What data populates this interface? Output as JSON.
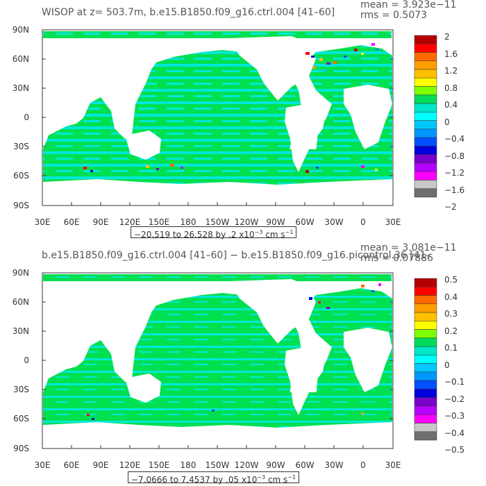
{
  "panels": [
    {
      "title": "WISOP at z= 503.7m, b.e15.B1850.f09_g16.ctrl.004 [41–60]",
      "stat_mean": "mean = 3.923e−11",
      "stat_rms": "rms = 0.5073",
      "colorbar_labels": [
        "2",
        "1.6",
        "1.2",
        "0.8",
        "0.4",
        "0",
        "−0.4",
        "−0.8",
        "−1.2",
        "−1.6",
        "−2"
      ],
      "range_text": "−20.519 to 26.528 by .2 x10",
      "range_exp": "−3",
      "range_unit": " cm s",
      "range_unit_exp": "−1"
    },
    {
      "title": "b.e15.B1850.f09_g16.ctrl.004 [41–60] − b.e15.B1850.f09_g16.picontrol.36 [41–",
      "stat_mean": "mean = 3.081e−11",
      "stat_rms": "rms = 0.07886",
      "colorbar_labels": [
        "0.5",
        "0.4",
        "0.3",
        "0.2",
        "0.1",
        "0",
        "−0.1",
        "−0.2",
        "−0.3",
        "−0.4",
        "−0.5"
      ],
      "range_text": "−7.0666 to 7.4537 by .05 x10",
      "range_exp": "−3",
      "range_unit": " cm s",
      "range_unit_exp": "−1"
    }
  ],
  "lat_labels": [
    "90N",
    "60N",
    "30N",
    "0",
    "30S",
    "60S",
    "90S"
  ],
  "lon_labels": [
    "30E",
    "60E",
    "90E",
    "120E",
    "150E",
    "180",
    "150W",
    "120W",
    "90W",
    "60W",
    "30W",
    "0",
    "30E"
  ],
  "colorbar_colors": [
    "#b40000",
    "#ff0000",
    "#ff6a00",
    "#ff9f00",
    "#ffc000",
    "#ffff00",
    "#7dff00",
    "#00dc5a",
    "#00e6c8",
    "#00ffff",
    "#00c8ff",
    "#0096ff",
    "#0050ff",
    "#0000dc",
    "#7800c8",
    "#b400ff",
    "#ff00ff",
    "#c8c8c8",
    "#6e6e6e"
  ],
  "colors": {
    "ocean_main": "#00e050",
    "ocean_alt": "#00e8d8",
    "land": "#ffffff"
  }
}
